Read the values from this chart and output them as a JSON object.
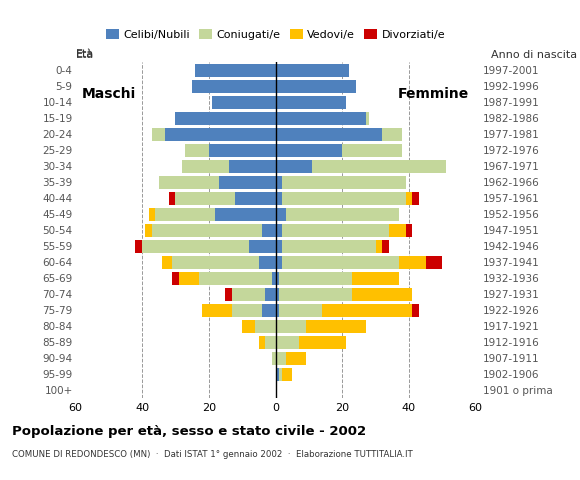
{
  "age_groups": [
    "100+",
    "95-99",
    "90-94",
    "85-89",
    "80-84",
    "75-79",
    "70-74",
    "65-69",
    "60-64",
    "55-59",
    "50-54",
    "45-49",
    "40-44",
    "35-39",
    "30-34",
    "25-29",
    "20-24",
    "15-19",
    "10-14",
    "5-9",
    "0-4"
  ],
  "birth_years": [
    "1901 o prima",
    "1902-1906",
    "1907-1911",
    "1912-1916",
    "1917-1921",
    "1922-1926",
    "1927-1931",
    "1932-1936",
    "1937-1941",
    "1942-1946",
    "1947-1951",
    "1952-1956",
    "1957-1961",
    "1962-1966",
    "1967-1971",
    "1972-1976",
    "1977-1981",
    "1982-1986",
    "1987-1991",
    "1992-1996",
    "1997-2001"
  ],
  "males_celibi": [
    0,
    0,
    0,
    0,
    0,
    4,
    3,
    1,
    5,
    8,
    4,
    18,
    12,
    17,
    14,
    20,
    33,
    30,
    19,
    25,
    24
  ],
  "males_coniugati": [
    0,
    0,
    1,
    3,
    6,
    9,
    10,
    22,
    26,
    32,
    33,
    18,
    18,
    18,
    14,
    7,
    4,
    0,
    0,
    0,
    0
  ],
  "males_vedovi": [
    0,
    0,
    0,
    2,
    4,
    9,
    0,
    6,
    3,
    0,
    2,
    2,
    0,
    0,
    0,
    0,
    0,
    0,
    0,
    0,
    0
  ],
  "males_divorziati": [
    0,
    0,
    0,
    0,
    0,
    0,
    2,
    2,
    0,
    2,
    0,
    0,
    2,
    0,
    0,
    0,
    0,
    0,
    0,
    0,
    0
  ],
  "females_nubili": [
    0,
    1,
    0,
    0,
    0,
    1,
    1,
    1,
    2,
    2,
    2,
    3,
    2,
    2,
    11,
    20,
    32,
    27,
    21,
    24,
    22
  ],
  "females_coniugate": [
    0,
    1,
    3,
    7,
    9,
    13,
    22,
    22,
    35,
    28,
    32,
    34,
    37,
    37,
    40,
    18,
    6,
    1,
    0,
    0,
    0
  ],
  "females_vedove": [
    0,
    3,
    6,
    14,
    18,
    27,
    18,
    14,
    8,
    2,
    5,
    0,
    2,
    0,
    0,
    0,
    0,
    0,
    0,
    0,
    0
  ],
  "females_divorziate": [
    0,
    0,
    0,
    0,
    0,
    2,
    0,
    0,
    5,
    2,
    2,
    0,
    2,
    0,
    0,
    0,
    0,
    0,
    0,
    0,
    0
  ],
  "colors": {
    "celibi_nubili": "#4f81bd",
    "coniugati_e": "#c4d79b",
    "vedovi_e": "#ffc000",
    "divorziati_e": "#cc0000"
  },
  "title": "Popolazione per età, sesso e stato civile - 2002",
  "subtitle": "COMUNE DI REDONDESCO (MN)  ·  Dati ISTAT 1° gennaio 2002  ·  Elaborazione TUTTITALIA.IT",
  "xlim": 60,
  "bar_height": 0.82,
  "bg_color": "#ffffff",
  "grid_color": "#999999",
  "label_maschi": "Maschi",
  "label_femmine": "Femmine",
  "label_eta": "Età",
  "label_anno": "Anno di nascita",
  "legend_labels": [
    "Celibi/Nubili",
    "Coniugati/e",
    "Vedovi/e",
    "Divorziati/e"
  ]
}
